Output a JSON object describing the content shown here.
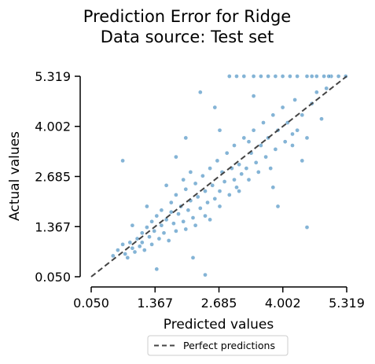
{
  "chart_data": {
    "type": "scatter",
    "title_lines": [
      "Prediction Error for Ridge",
      "Data source: Test set"
    ],
    "xlabel": "Predicted values",
    "ylabel": "Actual values",
    "xlim": [
      0.05,
      5.319
    ],
    "ylim": [
      0.05,
      5.319
    ],
    "xticks": [
      "0.050",
      "1.367",
      "2.685",
      "4.002",
      "5.319"
    ],
    "yticks": [
      "0.050",
      "1.367",
      "2.685",
      "4.002",
      "5.319"
    ],
    "grid": false,
    "legend_placement": "bottom-center",
    "reference_line": {
      "name": "Perfect predictions",
      "from": [
        0.05,
        0.05
      ],
      "to": [
        5.319,
        5.319
      ]
    },
    "colors": {
      "points": "#1f77b4",
      "reference_line": "#444444"
    },
    "points": [
      [
        0.5,
        0.6
      ],
      [
        0.6,
        0.75
      ],
      [
        0.7,
        0.9
      ],
      [
        0.75,
        0.65
      ],
      [
        0.8,
        0.55
      ],
      [
        0.85,
        0.95
      ],
      [
        0.9,
        0.8
      ],
      [
        0.95,
        0.7
      ],
      [
        1.0,
        1.05
      ],
      [
        1.05,
        0.85
      ],
      [
        1.1,
        1.2
      ],
      [
        1.1,
        0.95
      ],
      [
        1.15,
        0.75
      ],
      [
        1.2,
        1.35
      ],
      [
        1.25,
        1.1
      ],
      [
        1.3,
        1.5
      ],
      [
        1.3,
        0.9
      ],
      [
        1.35,
        1.25
      ],
      [
        1.4,
        1.65
      ],
      [
        1.45,
        1.05
      ],
      [
        1.5,
        1.4
      ],
      [
        1.5,
        1.8
      ],
      [
        1.55,
        1.2
      ],
      [
        1.6,
        1.55
      ],
      [
        1.65,
        1.0
      ],
      [
        1.7,
        1.75
      ],
      [
        1.7,
        2.0
      ],
      [
        1.75,
        1.45
      ],
      [
        1.8,
        1.25
      ],
      [
        1.8,
        2.2
      ],
      [
        1.85,
        1.7
      ],
      [
        1.9,
        1.9
      ],
      [
        1.95,
        1.5
      ],
      [
        2.0,
        2.35
      ],
      [
        2.0,
        1.3
      ],
      [
        2.05,
        1.8
      ],
      [
        2.1,
        2.05
      ],
      [
        2.15,
        1.6
      ],
      [
        2.2,
        2.5
      ],
      [
        2.2,
        1.4
      ],
      [
        2.25,
        2.15
      ],
      [
        2.3,
        1.85
      ],
      [
        2.35,
        2.7
      ],
      [
        2.4,
        1.65
      ],
      [
        2.4,
        2.3
      ],
      [
        2.45,
        2.0
      ],
      [
        2.5,
        2.9
      ],
      [
        2.5,
        1.55
      ],
      [
        2.55,
        2.45
      ],
      [
        2.6,
        2.1
      ],
      [
        2.65,
        3.1
      ],
      [
        2.7,
        2.3
      ],
      [
        2.7,
        1.9
      ],
      [
        2.75,
        2.8
      ],
      [
        2.8,
        2.55
      ],
      [
        2.85,
        3.3
      ],
      [
        2.9,
        2.2
      ],
      [
        2.95,
        2.9
      ],
      [
        3.0,
        2.6
      ],
      [
        3.0,
        3.5
      ],
      [
        3.05,
        2.4
      ],
      [
        3.1,
        3.0
      ],
      [
        3.15,
        2.75
      ],
      [
        3.2,
        3.7
      ],
      [
        3.25,
        2.9
      ],
      [
        3.3,
        2.6
      ],
      [
        3.35,
        3.3
      ],
      [
        3.4,
        3.9
      ],
      [
        3.45,
        3.05
      ],
      [
        3.5,
        2.8
      ],
      [
        3.55,
        3.5
      ],
      [
        3.6,
        4.1
      ],
      [
        3.65,
        3.2
      ],
      [
        3.7,
        3.7
      ],
      [
        3.75,
        2.9
      ],
      [
        3.8,
        4.3
      ],
      [
        3.85,
        3.4
      ],
      [
        3.9,
        3.9
      ],
      [
        4.0,
        4.5
      ],
      [
        4.05,
        3.6
      ],
      [
        4.1,
        4.1
      ],
      [
        4.2,
        3.5
      ],
      [
        4.25,
        4.7
      ],
      [
        4.3,
        3.9
      ],
      [
        4.4,
        4.3
      ],
      [
        4.5,
        3.7
      ],
      [
        4.6,
        4.6
      ],
      [
        4.7,
        4.9
      ],
      [
        4.8,
        4.2
      ],
      [
        4.9,
        5.0
      ],
      [
        3.2,
        5.319
      ],
      [
        3.4,
        5.319
      ],
      [
        3.55,
        5.319
      ],
      [
        3.7,
        5.319
      ],
      [
        3.85,
        5.319
      ],
      [
        4.0,
        5.319
      ],
      [
        4.15,
        5.319
      ],
      [
        4.3,
        5.319
      ],
      [
        4.5,
        5.319
      ],
      [
        4.7,
        5.319
      ],
      [
        4.85,
        5.319
      ],
      [
        5.0,
        5.319
      ],
      [
        5.15,
        5.319
      ],
      [
        5.3,
        5.319
      ],
      [
        2.9,
        5.319
      ],
      [
        3.05,
        5.319
      ],
      [
        4.6,
        5.319
      ],
      [
        4.95,
        5.319
      ],
      [
        0.7,
        3.1
      ],
      [
        1.4,
        0.25
      ],
      [
        2.4,
        0.1
      ],
      [
        2.15,
        0.55
      ],
      [
        4.5,
        1.35
      ],
      [
        3.9,
        1.9
      ],
      [
        3.1,
        2.3
      ],
      [
        2.0,
        3.7
      ],
      [
        1.8,
        3.2
      ],
      [
        1.6,
        2.45
      ],
      [
        4.2,
        3.8
      ],
      [
        2.6,
        4.5
      ],
      [
        3.4,
        4.8
      ],
      [
        2.3,
        4.9
      ],
      [
        3.8,
        2.4
      ],
      [
        4.4,
        3.1
      ],
      [
        1.2,
        1.9
      ],
      [
        0.9,
        1.4
      ],
      [
        2.7,
        3.9
      ],
      [
        2.1,
        2.8
      ],
      [
        1.95,
        2.6
      ],
      [
        3.3,
        3.6
      ]
    ]
  }
}
